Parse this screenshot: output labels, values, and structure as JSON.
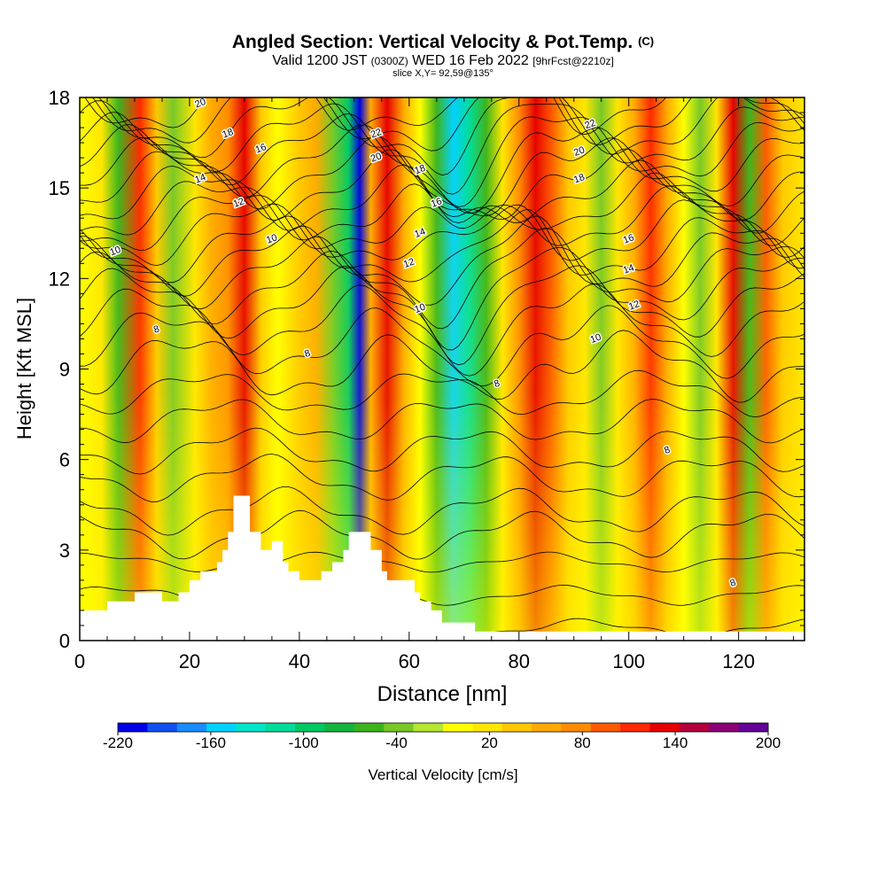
{
  "header": {
    "title": "Angled Section: Vertical Velocity & Pot.Temp.",
    "title_unit": "(C)",
    "valid_prefix": "Valid 1200 JST",
    "valid_zulu": "(0300Z)",
    "valid_date": "WED 16 Feb 2022",
    "forecast": "[9hrFcst@2210z]",
    "slice": "slice X,Y= 92,59@135°"
  },
  "chart_data": {
    "type": "heatmap",
    "xlabel": "Distance [nm]",
    "ylabel": "Height [Kft MSL]",
    "xlim": [
      0,
      132
    ],
    "ylim": [
      0,
      18
    ],
    "x_ticks": [
      0,
      20,
      40,
      60,
      80,
      100,
      120
    ],
    "y_ticks": [
      0,
      3,
      6,
      9,
      12,
      15,
      18
    ],
    "colorbar": {
      "label": "Vertical Velocity [cm/s]",
      "tick_labels": [
        -220,
        -160,
        -100,
        -40,
        20,
        80,
        140,
        200
      ],
      "levels": [
        -220,
        -200,
        -180,
        -160,
        -140,
        -120,
        -100,
        -80,
        -60,
        -40,
        -20,
        0,
        20,
        40,
        60,
        80,
        100,
        120,
        140,
        160,
        180,
        200
      ],
      "colors": [
        "#0000e6",
        "#1050f0",
        "#1a8cff",
        "#00d2ff",
        "#00e6c8",
        "#00dc9a",
        "#00c864",
        "#14b43c",
        "#3cb41e",
        "#78c828",
        "#b4e632",
        "#ffff00",
        "#ffe600",
        "#ffc800",
        "#ffaa00",
        "#ff8c00",
        "#ff5a00",
        "#ff2800",
        "#e60000",
        "#b4003c",
        "#8c0078",
        "#640096"
      ]
    },
    "vertical_velocity_columns": [
      {
        "x": 0,
        "w": 15
      },
      {
        "x": 4,
        "w": 35
      },
      {
        "x": 7,
        "w": -55
      },
      {
        "x": 11,
        "w": 130
      },
      {
        "x": 14,
        "w": 45
      },
      {
        "x": 17,
        "w": -30
      },
      {
        "x": 21,
        "w": 30
      },
      {
        "x": 24,
        "w": 60
      },
      {
        "x": 27,
        "w": 80
      },
      {
        "x": 30,
        "w": 150
      },
      {
        "x": 33,
        "w": 40
      },
      {
        "x": 36,
        "w": 10
      },
      {
        "x": 40,
        "w": 40
      },
      {
        "x": 43,
        "w": 70
      },
      {
        "x": 46,
        "w": -40
      },
      {
        "x": 49,
        "w": -100
      },
      {
        "x": 51,
        "w": -220
      },
      {
        "x": 53,
        "w": 70
      },
      {
        "x": 56,
        "w": 140
      },
      {
        "x": 59,
        "w": 60
      },
      {
        "x": 62,
        "w": 10
      },
      {
        "x": 65,
        "w": -60
      },
      {
        "x": 68,
        "w": -150
      },
      {
        "x": 71,
        "w": -110
      },
      {
        "x": 74,
        "w": -50
      },
      {
        "x": 77,
        "w": 20
      },
      {
        "x": 80,
        "w": 80
      },
      {
        "x": 83,
        "w": 150
      },
      {
        "x": 86,
        "w": 100
      },
      {
        "x": 89,
        "w": 40
      },
      {
        "x": 92,
        "w": 20
      },
      {
        "x": 95,
        "w": -40
      },
      {
        "x": 98,
        "w": 20
      },
      {
        "x": 101,
        "w": 60
      },
      {
        "x": 104,
        "w": 120
      },
      {
        "x": 107,
        "w": 60
      },
      {
        "x": 110,
        "w": 10
      },
      {
        "x": 113,
        "w": -40
      },
      {
        "x": 116,
        "w": 20
      },
      {
        "x": 119,
        "w": 140
      },
      {
        "x": 122,
        "w": -50
      },
      {
        "x": 125,
        "w": 100
      },
      {
        "x": 128,
        "w": 40
      },
      {
        "x": 132,
        "w": 20
      }
    ],
    "terrain": [
      [
        0,
        1.0
      ],
      [
        5,
        1.0
      ],
      [
        5,
        1.3
      ],
      [
        10,
        1.3
      ],
      [
        10,
        1.6
      ],
      [
        15,
        1.6
      ],
      [
        15,
        1.3
      ],
      [
        18,
        1.3
      ],
      [
        18,
        1.6
      ],
      [
        20,
        1.6
      ],
      [
        20,
        2.0
      ],
      [
        22,
        2.0
      ],
      [
        22,
        2.3
      ],
      [
        25,
        2.3
      ],
      [
        25,
        2.6
      ],
      [
        26,
        2.6
      ],
      [
        26,
        3.0
      ],
      [
        27,
        3.0
      ],
      [
        27,
        3.6
      ],
      [
        28,
        3.6
      ],
      [
        28,
        4.8
      ],
      [
        31,
        4.8
      ],
      [
        31,
        3.6
      ],
      [
        33,
        3.6
      ],
      [
        33,
        3.0
      ],
      [
        35,
        3.0
      ],
      [
        35,
        3.3
      ],
      [
        37,
        3.3
      ],
      [
        37,
        2.6
      ],
      [
        38,
        2.6
      ],
      [
        38,
        2.3
      ],
      [
        40,
        2.3
      ],
      [
        40,
        2.0
      ],
      [
        44,
        2.0
      ],
      [
        44,
        2.3
      ],
      [
        46,
        2.3
      ],
      [
        46,
        2.6
      ],
      [
        48,
        2.6
      ],
      [
        48,
        3.0
      ],
      [
        49,
        3.0
      ],
      [
        49,
        3.6
      ],
      [
        53,
        3.6
      ],
      [
        53,
        3.0
      ],
      [
        55,
        3.0
      ],
      [
        55,
        2.3
      ],
      [
        56,
        2.3
      ],
      [
        56,
        2.0
      ],
      [
        61,
        2.0
      ],
      [
        61,
        1.6
      ],
      [
        62,
        1.6
      ],
      [
        62,
        1.3
      ],
      [
        64,
        1.3
      ],
      [
        64,
        1.0
      ],
      [
        66,
        1.0
      ],
      [
        66,
        0.6
      ],
      [
        72,
        0.6
      ],
      [
        72,
        0.3
      ],
      [
        132,
        0.3
      ]
    ],
    "isotherm_label_values": [
      8,
      10,
      12,
      14,
      16,
      18,
      20,
      22
    ],
    "isotherm_labels": [
      {
        "x": 6.5,
        "y": 12.9,
        "t": "10"
      },
      {
        "x": 14,
        "y": 10.3,
        "t": "8"
      },
      {
        "x": 22,
        "y": 17.8,
        "t": "20"
      },
      {
        "x": 27,
        "y": 16.8,
        "t": "18"
      },
      {
        "x": 33,
        "y": 16.3,
        "t": "16"
      },
      {
        "x": 22,
        "y": 15.3,
        "t": "14"
      },
      {
        "x": 29,
        "y": 14.5,
        "t": "12"
      },
      {
        "x": 35,
        "y": 13.3,
        "t": "10"
      },
      {
        "x": 41.5,
        "y": 9.5,
        "t": "8"
      },
      {
        "x": 54,
        "y": 16.8,
        "t": "22"
      },
      {
        "x": 54,
        "y": 16.0,
        "t": "20"
      },
      {
        "x": 62,
        "y": 15.6,
        "t": "18"
      },
      {
        "x": 65,
        "y": 14.5,
        "t": "16"
      },
      {
        "x": 62,
        "y": 13.5,
        "t": "14"
      },
      {
        "x": 60,
        "y": 12.5,
        "t": "12"
      },
      {
        "x": 62,
        "y": 11.0,
        "t": "10"
      },
      {
        "x": 76,
        "y": 8.5,
        "t": "8"
      },
      {
        "x": 93,
        "y": 17.1,
        "t": "22"
      },
      {
        "x": 91,
        "y": 16.2,
        "t": "20"
      },
      {
        "x": 91,
        "y": 15.3,
        "t": "18"
      },
      {
        "x": 100,
        "y": 13.3,
        "t": "16"
      },
      {
        "x": 100,
        "y": 12.3,
        "t": "14"
      },
      {
        "x": 101,
        "y": 11.1,
        "t": "12"
      },
      {
        "x": 94,
        "y": 10.0,
        "t": "10"
      },
      {
        "x": 107,
        "y": 6.3,
        "t": "8"
      },
      {
        "x": 119,
        "y": 1.9,
        "t": "8"
      }
    ]
  }
}
